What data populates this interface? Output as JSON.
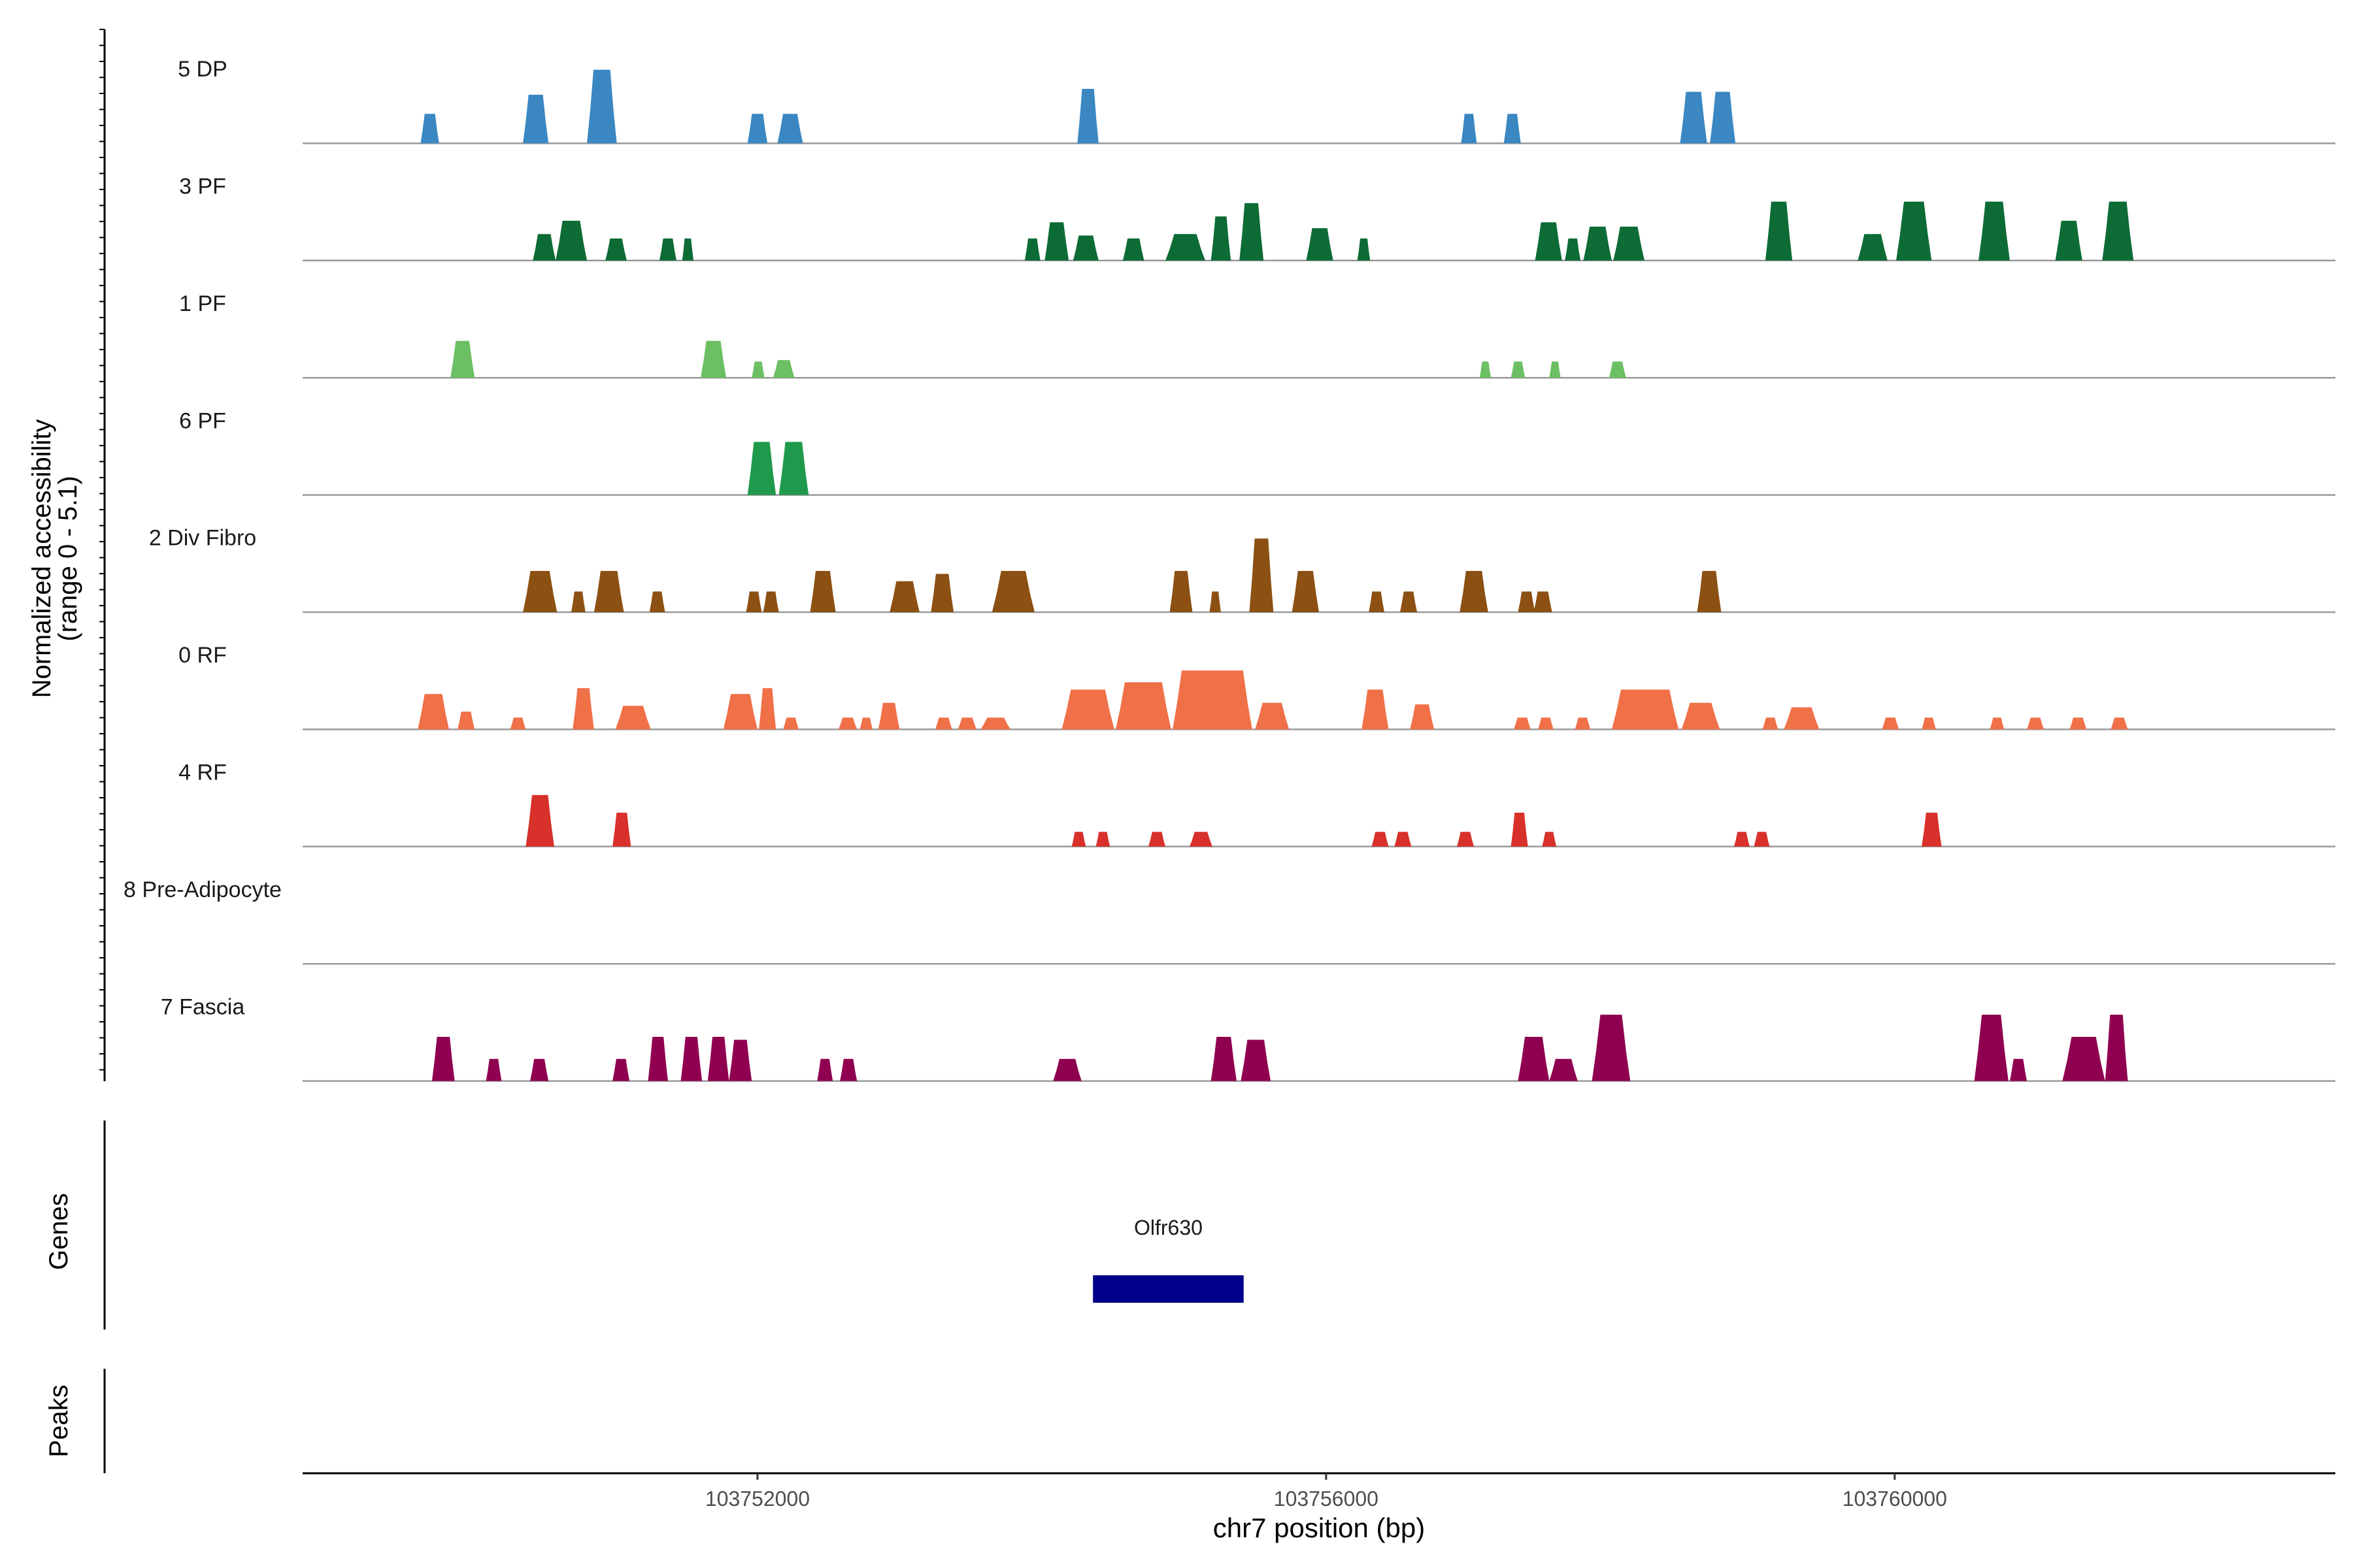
{
  "chart_data": {
    "type": "area",
    "title": "",
    "ylabel_line1": "Normalized accessibility",
    "ylabel_line2": "(range 0 - 5.1)",
    "xlabel": "chr7 position (bp)",
    "xlim": [
      103748800,
      103763100
    ],
    "ylim": [
      0,
      5.1
    ],
    "x_ticks": [
      103752000,
      103756000,
      103760000
    ],
    "x_tick_labels": [
      "103752000",
      "103756000",
      "103760000"
    ],
    "colors": {
      "5 DP": "#3a87c2",
      "3 PF": "#0d6b35",
      "1 PF": "#6cbf63",
      "6 PF": "#1f9a4c",
      "2 Div Fibro": "#8b5012",
      "0 RF": "#f07048",
      "4 RF": "#d8302a",
      "8 Pre-Adipocyte": "#7a4fa0",
      "7 Fascia": "#900050",
      "gene": "#00008b",
      "baseline": "#9a9a9a"
    },
    "series": [
      {
        "name": "5 DP",
        "peaks": [
          [
            103749630,
            103749760,
            2.0
          ],
          [
            103750350,
            103750530,
            3.3
          ],
          [
            103750800,
            103751010,
            5.0
          ],
          [
            103751930,
            103752070,
            2.0
          ],
          [
            103752140,
            103752320,
            2.0
          ],
          [
            103754250,
            103754400,
            3.7
          ],
          [
            103756950,
            103757060,
            2.0
          ],
          [
            103757250,
            103757370,
            2.0
          ],
          [
            103758490,
            103758680,
            3.5
          ],
          [
            103758700,
            103758880,
            3.5
          ]
        ]
      },
      {
        "name": "3 PF",
        "peaks": [
          [
            103750420,
            103750580,
            1.8
          ],
          [
            103750580,
            103750800,
            2.7
          ],
          [
            103750930,
            103751080,
            1.5
          ],
          [
            103751310,
            103751430,
            1.5
          ],
          [
            103751470,
            103751550,
            1.5
          ],
          [
            103753880,
            103753990,
            1.5
          ],
          [
            103754020,
            103754190,
            2.6
          ],
          [
            103754220,
            103754400,
            1.7
          ],
          [
            103754570,
            103754720,
            1.5
          ],
          [
            103754870,
            103755150,
            1.8
          ],
          [
            103755190,
            103755330,
            3.0
          ],
          [
            103755390,
            103755560,
            3.9
          ],
          [
            103755860,
            103756050,
            2.2
          ],
          [
            103756220,
            103756310,
            1.5
          ],
          [
            103757470,
            103757660,
            2.6
          ],
          [
            103757680,
            103757790,
            1.5
          ],
          [
            103757810,
            103758010,
            2.3
          ],
          [
            103758020,
            103758240,
            2.3
          ],
          [
            103759090,
            103759280,
            4.0
          ],
          [
            103759740,
            103759950,
            1.8
          ],
          [
            103760010,
            103760260,
            4.0
          ],
          [
            103760590,
            103760810,
            4.0
          ],
          [
            103761130,
            103761320,
            2.7
          ],
          [
            103761460,
            103761680,
            4.0
          ]
        ]
      },
      {
        "name": "1 PF",
        "peaks": [
          [
            103749840,
            103750010,
            2.5
          ],
          [
            103751600,
            103751780,
            2.5
          ],
          [
            103751960,
            103752050,
            1.1
          ],
          [
            103752110,
            103752260,
            1.2
          ],
          [
            103757080,
            103757160,
            1.1
          ],
          [
            103757300,
            103757400,
            1.1
          ],
          [
            103757570,
            103757650,
            1.1
          ],
          [
            103757990,
            103758110,
            1.1
          ]
        ]
      },
      {
        "name": "6 PF",
        "peaks": [
          [
            103751930,
            103752130,
            3.6
          ],
          [
            103752150,
            103752360,
            3.6
          ]
        ]
      },
      {
        "name": "2 Div Fibro",
        "peaks": [
          [
            103750350,
            103750590,
            2.8
          ],
          [
            103750690,
            103750790,
            1.4
          ],
          [
            103750850,
            103751060,
            2.8
          ],
          [
            103751240,
            103751350,
            1.4
          ],
          [
            103751920,
            103752030,
            1.4
          ],
          [
            103752040,
            103752150,
            1.4
          ],
          [
            103752370,
            103752550,
            2.8
          ],
          [
            103752930,
            103753140,
            2.1
          ],
          [
            103753220,
            103753380,
            2.6
          ],
          [
            103753650,
            103753950,
            2.8
          ],
          [
            103754900,
            103755060,
            2.8
          ],
          [
            103755180,
            103755260,
            1.4
          ],
          [
            103755460,
            103755630,
            5.0
          ],
          [
            103755760,
            103755950,
            2.8
          ],
          [
            103756300,
            103756410,
            1.4
          ],
          [
            103756520,
            103756640,
            1.4
          ],
          [
            103756940,
            103757140,
            2.8
          ],
          [
            103757350,
            103757470,
            1.4
          ],
          [
            103757460,
            103757590,
            1.4
          ],
          [
            103758610,
            103758780,
            2.8
          ]
        ]
      },
      {
        "name": "0 RF",
        "peaks": [
          [
            103749610,
            103749830,
            2.4
          ],
          [
            103749890,
            103750010,
            1.2
          ],
          [
            103750260,
            103750370,
            0.8
          ],
          [
            103750700,
            103750850,
            2.8
          ],
          [
            103751000,
            103751250,
            1.6
          ],
          [
            103751760,
            103752000,
            2.4
          ],
          [
            103752010,
            103752130,
            2.8
          ],
          [
            103752180,
            103752290,
            0.8
          ],
          [
            103752570,
            103752700,
            0.8
          ],
          [
            103752720,
            103752810,
            0.8
          ],
          [
            103752850,
            103753000,
            1.8
          ],
          [
            103753250,
            103753370,
            0.8
          ],
          [
            103753410,
            103753540,
            0.8
          ],
          [
            103753570,
            103753780,
            0.8
          ],
          [
            103754140,
            103754510,
            2.7
          ],
          [
            103754520,
            103754910,
            3.2
          ],
          [
            103754920,
            103755480,
            4.0
          ],
          [
            103755500,
            103755740,
            1.8
          ],
          [
            103756250,
            103756440,
            2.7
          ],
          [
            103756590,
            103756760,
            1.7
          ],
          [
            103757320,
            103757440,
            0.8
          ],
          [
            103757490,
            103757600,
            0.8
          ],
          [
            103757750,
            103757860,
            0.8
          ],
          [
            103758010,
            103758480,
            2.7
          ],
          [
            103758500,
            103758770,
            1.8
          ],
          [
            103759070,
            103759180,
            0.8
          ],
          [
            103759220,
            103759470,
            1.5
          ],
          [
            103759910,
            103760030,
            0.8
          ],
          [
            103760190,
            103760290,
            0.8
          ],
          [
            103760670,
            103760770,
            0.8
          ],
          [
            103760930,
            103761050,
            0.8
          ],
          [
            103761230,
            103761350,
            0.8
          ],
          [
            103761520,
            103761640,
            0.8
          ]
        ]
      },
      {
        "name": "4 RF",
        "peaks": [
          [
            103750370,
            103750570,
            3.5
          ],
          [
            103750980,
            103751110,
            2.3
          ],
          [
            103754210,
            103754310,
            1.0
          ],
          [
            103754380,
            103754480,
            1.0
          ],
          [
            103754750,
            103754870,
            1.0
          ],
          [
            103755040,
            103755200,
            1.0
          ],
          [
            103756320,
            103756440,
            1.0
          ],
          [
            103756480,
            103756600,
            1.0
          ],
          [
            103756920,
            103757040,
            1.0
          ],
          [
            103757300,
            103757420,
            2.3
          ],
          [
            103757520,
            103757620,
            1.0
          ],
          [
            103758870,
            103758980,
            1.0
          ],
          [
            103759010,
            103759120,
            1.0
          ],
          [
            103760190,
            103760330,
            2.3
          ]
        ]
      },
      {
        "name": "8 Pre-Adipocyte",
        "peaks": []
      },
      {
        "name": "7 Fascia",
        "peaks": [
          [
            103749710,
            103749870,
            3.0
          ],
          [
            103750090,
            103750200,
            1.5
          ],
          [
            103750400,
            103750530,
            1.5
          ],
          [
            103750980,
            103751100,
            1.5
          ],
          [
            103751230,
            103751370,
            3.0
          ],
          [
            103751460,
            103751610,
            3.0
          ],
          [
            103751650,
            103751800,
            3.0
          ],
          [
            103751800,
            103751960,
            2.8
          ],
          [
            103752420,
            103752530,
            1.5
          ],
          [
            103752580,
            103752700,
            1.5
          ],
          [
            103754080,
            103754280,
            1.5
          ],
          [
            103755190,
            103755370,
            3.0
          ],
          [
            103755400,
            103755610,
            2.8
          ],
          [
            103757350,
            103757570,
            3.0
          ],
          [
            103757570,
            103757770,
            1.5
          ],
          [
            103757870,
            103758140,
            4.5
          ],
          [
            103760560,
            103760800,
            4.5
          ],
          [
            103760810,
            103760930,
            1.5
          ],
          [
            103761180,
            103761480,
            3.0
          ],
          [
            103761480,
            103761640,
            4.5
          ]
        ]
      }
    ],
    "genes": [
      {
        "name": "Olfr630",
        "start": 103754360,
        "end": 103755420
      }
    ],
    "genes_track_label": "Genes",
    "peaks_track_label": "Peaks"
  }
}
